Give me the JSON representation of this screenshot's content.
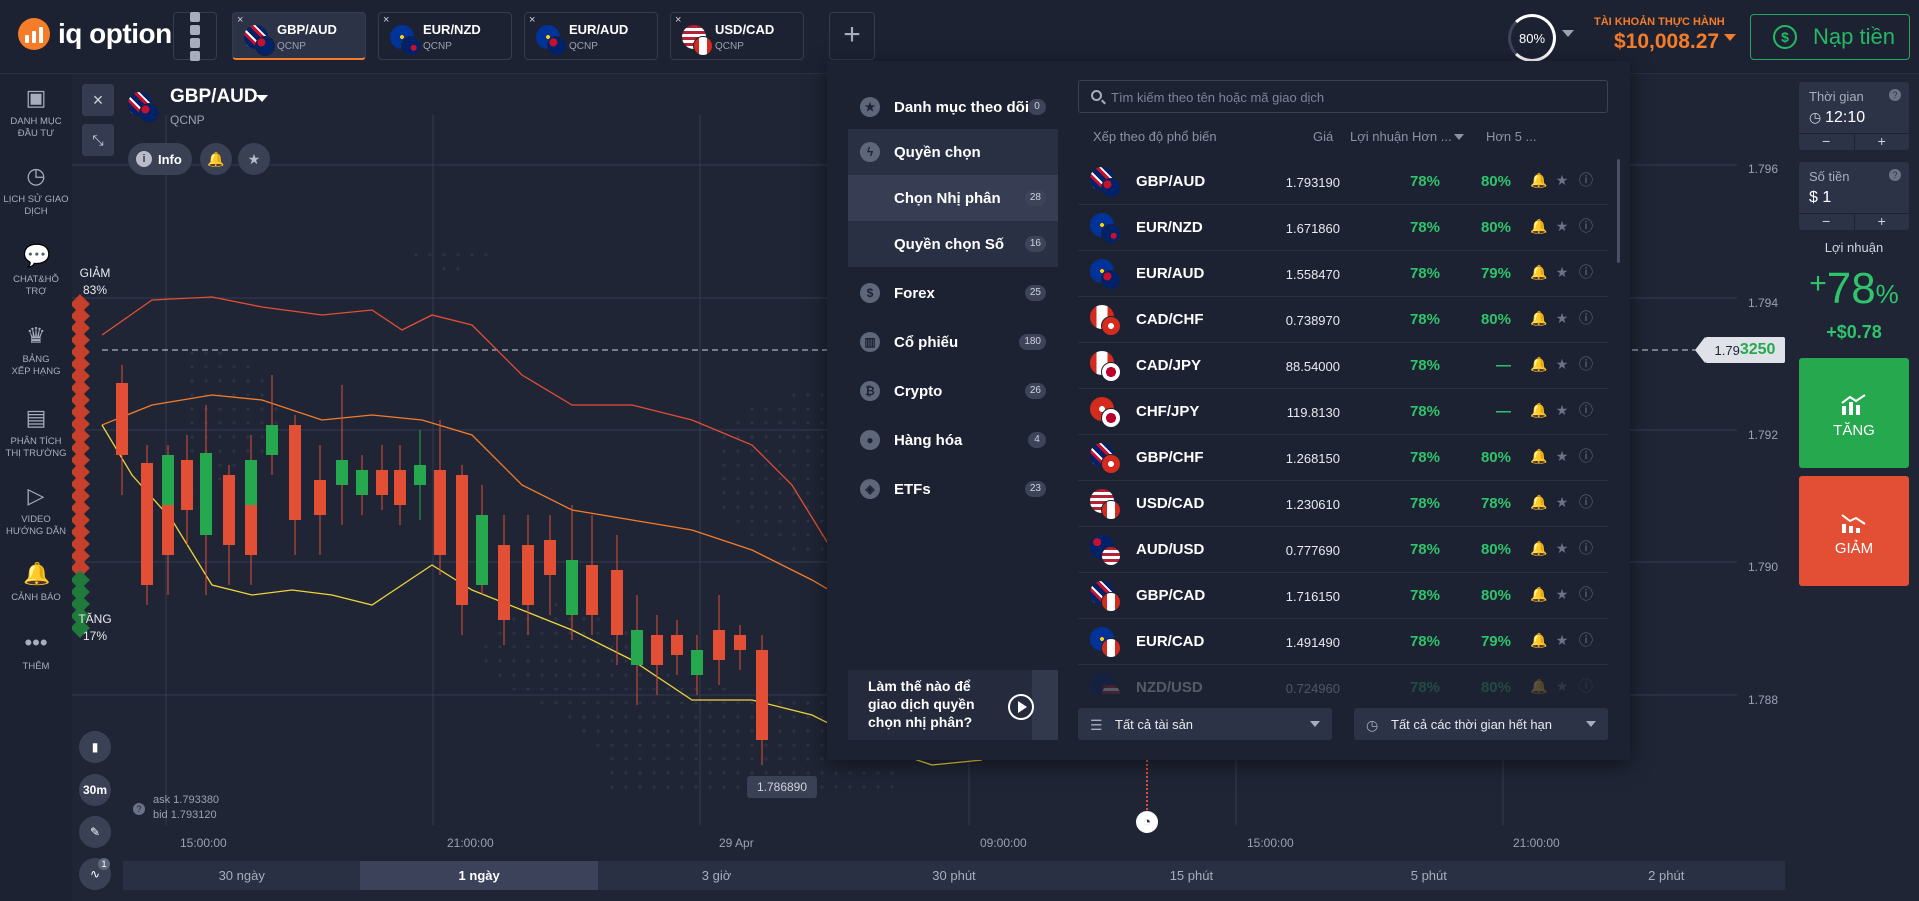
{
  "app": {
    "logo": "iq option"
  },
  "tabs": [
    {
      "pair": "GBP/AUD",
      "sub": "QCNP",
      "close": "×"
    },
    {
      "pair": "EUR/NZD",
      "sub": "QCNP",
      "close": "×"
    },
    {
      "pair": "EUR/AUD",
      "sub": "QCNP",
      "close": "×"
    },
    {
      "pair": "USD/CAD",
      "sub": "QCNP",
      "close": "×"
    }
  ],
  "header": {
    "ring_value": "80%",
    "account_label": "TÀI KHOẢN THỰC HÀNH",
    "balance": "$10,008.27",
    "deposit_label": "Nạp tiền"
  },
  "sidebar": [
    {
      "label": "DANH MỤC\nĐẦU TƯ",
      "icon": "briefcase-icon"
    },
    {
      "label": "LỊCH SỬ GIAO\nDỊCH",
      "icon": "history-icon"
    },
    {
      "label": "CHAT&HỖ\nTRỢ",
      "icon": "chat-icon"
    },
    {
      "label": "BẢNG\nXẾP HẠNG",
      "icon": "leaderboard-icon"
    },
    {
      "label": "PHÂN TÍCH\nTHỊ TRƯỜNG",
      "icon": "analysis-icon"
    },
    {
      "label": "VIDEO\nHƯỚNG DẪN",
      "icon": "video-icon"
    },
    {
      "label": "CẢNH BÁO",
      "icon": "bell-icon"
    },
    {
      "label": "THÊM",
      "icon": "more-icon"
    }
  ],
  "chart": {
    "asset": "GBP/AUD",
    "asset_sub": "QCNP",
    "info_label": "Info",
    "sentiment": {
      "down_label": "GIẢM",
      "down_pct": "83%",
      "up_label": "TĂNG",
      "up_pct": "17%"
    },
    "timeframe_btn": "30m",
    "ask": "ask 1.793380",
    "bid": "bid 1.793120",
    "current_price_prefix": "1.79",
    "current_price_suffix": "3250",
    "low_marker": "1.786890",
    "x_ticks": [
      "15:00:00",
      "21:00:00",
      "29 Apr",
      "09:00:00",
      "15:00:00",
      "21:00:00"
    ],
    "y_ticks": [
      "1.796",
      "1.794",
      "1.792",
      "1.790",
      "1.788"
    ],
    "alerts_badge": "1"
  },
  "timeframes": [
    {
      "label": "30 ngày",
      "active": false
    },
    {
      "label": "1 ngày",
      "active": true
    },
    {
      "label": "3 giờ",
      "active": false
    },
    {
      "label": "30 phút",
      "active": false
    },
    {
      "label": "15 phút",
      "active": false
    },
    {
      "label": "5 phút",
      "active": false
    },
    {
      "label": "2 phút",
      "active": false
    }
  ],
  "right_panel": {
    "time_label": "Thời gian",
    "time_value": "12:10",
    "amount_label": "Số tiền",
    "amount_value": "$ 1",
    "help": "?",
    "minus": "−",
    "plus": "+",
    "profit_label": "Lợi nhuận",
    "profit_sign": "+",
    "profit_pct": "78",
    "profit_pct_sign": "%",
    "profit_amount": "+$0.78",
    "call_label": "TĂNG",
    "put_label": "GIẢM"
  },
  "asset_menu": {
    "categories": [
      {
        "label": "Danh mục theo dõi",
        "count": "0",
        "icon": "★"
      },
      {
        "label": "Quyền chọn",
        "count": "",
        "icon": "ϟ"
      },
      {
        "label": "Chọn Nhị phân",
        "count": "28",
        "icon": ""
      },
      {
        "label": "Quyền chọn Số",
        "count": "16",
        "icon": ""
      },
      {
        "label": "Forex",
        "count": "25",
        "icon": "$"
      },
      {
        "label": "Cổ phiếu",
        "count": "180",
        "icon": "▥"
      },
      {
        "label": "Crypto",
        "count": "26",
        "icon": "₿"
      },
      {
        "label": "Hàng hóa",
        "count": "4",
        "icon": "●"
      },
      {
        "label": "ETFs",
        "count": "23",
        "icon": "◈"
      }
    ],
    "video_title": "Làm thế nào để giao dịch quyền chọn nhị phân?",
    "search_placeholder": "Tìm kiếm theo tên hoặc mã giao dịch",
    "columns": {
      "sort": "Xếp theo độ phổ biến",
      "price": "Giá",
      "profit": "Lợi nhuận Hơn ...",
      "more": "Hơn 5 ..."
    },
    "rows": [
      {
        "name": "GBP/AUD",
        "price": "1.793190",
        "p1": "78%",
        "p2": "80%",
        "f1": "f-uk",
        "f2": "f-au"
      },
      {
        "name": "EUR/NZD",
        "price": "1.671860",
        "p1": "78%",
        "p2": "80%",
        "f1": "f-eu",
        "f2": "f-nz"
      },
      {
        "name": "EUR/AUD",
        "price": "1.558470",
        "p1": "78%",
        "p2": "79%",
        "f1": "f-eu",
        "f2": "f-au"
      },
      {
        "name": "CAD/CHF",
        "price": "0.738970",
        "p1": "78%",
        "p2": "80%",
        "f1": "f-ca",
        "f2": "f-ch"
      },
      {
        "name": "CAD/JPY",
        "price": "88.54000",
        "p1": "78%",
        "p2": "—",
        "f1": "f-ca",
        "f2": "f-jp"
      },
      {
        "name": "CHF/JPY",
        "price": "119.8130",
        "p1": "78%",
        "p2": "—",
        "f1": "f-ch",
        "f2": "f-jp"
      },
      {
        "name": "GBP/CHF",
        "price": "1.268150",
        "p1": "78%",
        "p2": "80%",
        "f1": "f-uk",
        "f2": "f-ch"
      },
      {
        "name": "USD/CAD",
        "price": "1.230610",
        "p1": "78%",
        "p2": "78%",
        "f1": "f-us",
        "f2": "f-ca"
      },
      {
        "name": "AUD/USD",
        "price": "0.777690",
        "p1": "78%",
        "p2": "80%",
        "f1": "f-au",
        "f2": "f-us"
      },
      {
        "name": "GBP/CAD",
        "price": "1.716150",
        "p1": "78%",
        "p2": "80%",
        "f1": "f-uk",
        "f2": "f-ca"
      },
      {
        "name": "EUR/CAD",
        "price": "1.491490",
        "p1": "78%",
        "p2": "79%",
        "f1": "f-eu",
        "f2": "f-ca"
      },
      {
        "name": "NZD/USD",
        "price": "0.724960",
        "p1": "78%",
        "p2": "80%",
        "f1": "f-nz",
        "f2": "f-us"
      }
    ],
    "filter_assets": "Tất cả tài sản",
    "filter_expiry": "Tất cả các thời gian hết hạn"
  },
  "colors": {
    "accent": "#f57c28",
    "up": "#26a84f",
    "down": "#e24f35",
    "bg": "#1f2535",
    "panel": "#1d2233"
  }
}
